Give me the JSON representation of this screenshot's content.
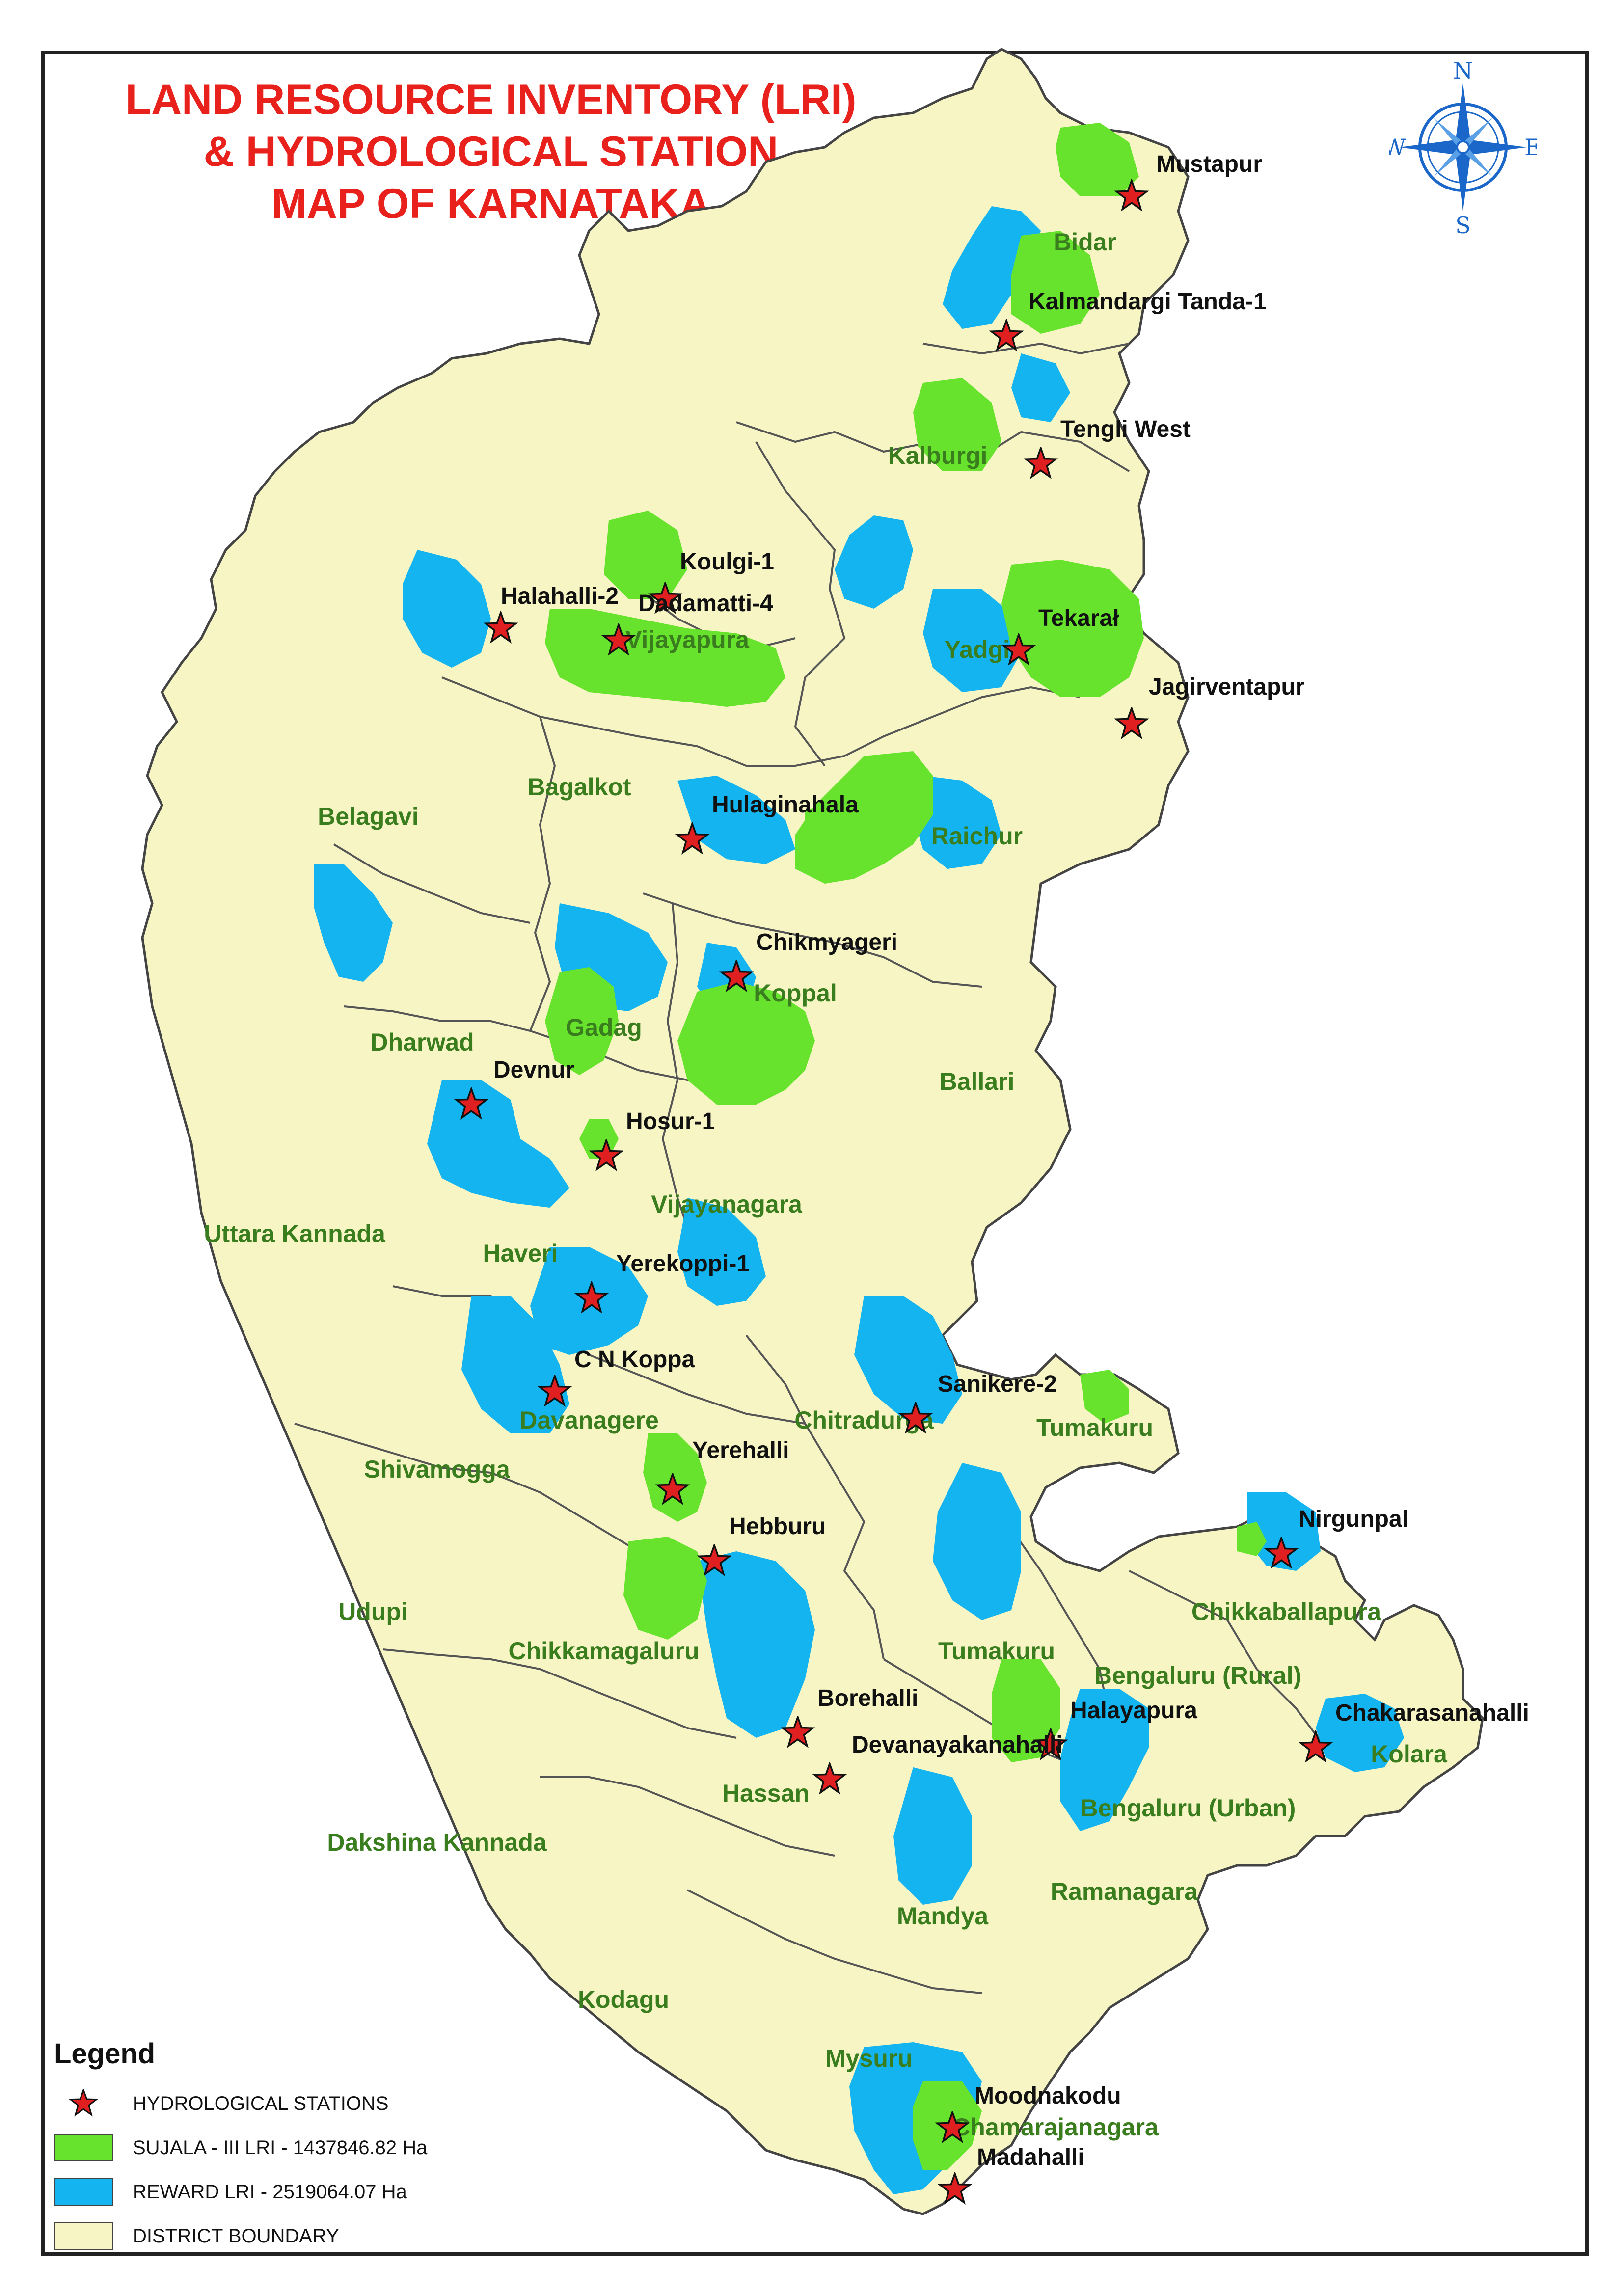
{
  "title": {
    "line1": "LAND RESOURCE INVENTORY (LRI)",
    "line2": "& HYDROLOGICAL STATION",
    "line3": "MAP OF KARNATAKA"
  },
  "compass": {
    "n": "N",
    "s": "S",
    "e": "E",
    "w": "W",
    "icon": "compass-rose-icon"
  },
  "colors": {
    "district_fill": "#f7f5c4",
    "sujala": "#67e32d",
    "reward": "#14b4f0",
    "station": "#e02020",
    "title": "#e8211d",
    "district_label": "#3a7d1e"
  },
  "districts": [
    "Bidar",
    "Kalburgi",
    "Vijayapura",
    "Yadgir",
    "Bagalkot",
    "Belagavi",
    "Raichur",
    "Koppal",
    "Gadag",
    "Dharwad",
    "Ballari",
    "Vijayanagara",
    "Uttara Kannada",
    "Haveri",
    "Davanagere",
    "Chitradurga",
    "Tumakuru",
    "Shivamogga",
    "Udupi",
    "Chikkamagaluru",
    "Tumakuru",
    "Chikkaballapura",
    "Bengaluru (Rural)",
    "Kolara",
    "Bengaluru (Urban)",
    "Hassan",
    "Dakshina Kannada",
    "Mandya",
    "Ramanagara",
    "Kodagu",
    "Mysuru",
    "Chamarajanagara"
  ],
  "stations": [
    "Mustapur",
    "Kalmandargi Tanda-1",
    "Tengli West",
    "Koulgi-1",
    "Dadamatti-4",
    "Halahalli-2",
    "Tekarał",
    "Jagirventapur",
    "Hulaginahala",
    "Chikmyageri",
    "Devnur",
    "Hosur-1",
    "Yerekoppi-1",
    "C N Koppa",
    "Sanikere-2",
    "Yerehalli",
    "Hebburu",
    "Nirgunpal",
    "Chakarasanahalli",
    "Halayapura",
    "Borehalli",
    "Devanayakanahalli",
    "Moodnakodu",
    "Madahalli"
  ],
  "legend": {
    "title": "Legend",
    "items": [
      {
        "icon": "star-icon",
        "label": "HYDROLOGICAL STATIONS"
      },
      {
        "icon": "green-swatch",
        "label": "SUJALA - III LRI - 1437846.82 Ha"
      },
      {
        "icon": "blue-swatch",
        "label": "REWARD LRI - 2519064.07 Ha"
      },
      {
        "icon": "yellow-swatch",
        "label": "DISTRICT BOUNDARY"
      }
    ]
  }
}
